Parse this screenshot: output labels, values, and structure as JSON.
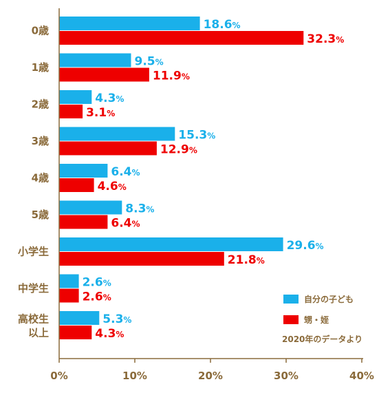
{
  "chart_data": {
    "type": "bar",
    "orientation": "horizontal",
    "categories": [
      "0歳",
      "1歳",
      "2歳",
      "3歳",
      "4歳",
      "5歳",
      "小学生",
      "中学生",
      "高校生\n以上"
    ],
    "series": [
      {
        "name": "自分の子ども",
        "color": "#1ab0ea",
        "values": [
          18.6,
          9.5,
          4.3,
          15.3,
          6.4,
          8.3,
          29.6,
          2.6,
          5.3
        ]
      },
      {
        "name": "甥・姪",
        "color": "#ee0000",
        "values": [
          32.3,
          11.9,
          3.1,
          12.9,
          4.6,
          6.4,
          21.8,
          2.6,
          4.3
        ]
      }
    ],
    "value_suffix": "%",
    "xlim": [
      0,
      40
    ],
    "x_ticks": [
      "0%",
      "10%",
      "20%",
      "30%",
      "40%"
    ],
    "grid": false,
    "legend_position": "bottom-right",
    "note": "2020年のデータより",
    "axis_color": "#8a6a3a"
  }
}
